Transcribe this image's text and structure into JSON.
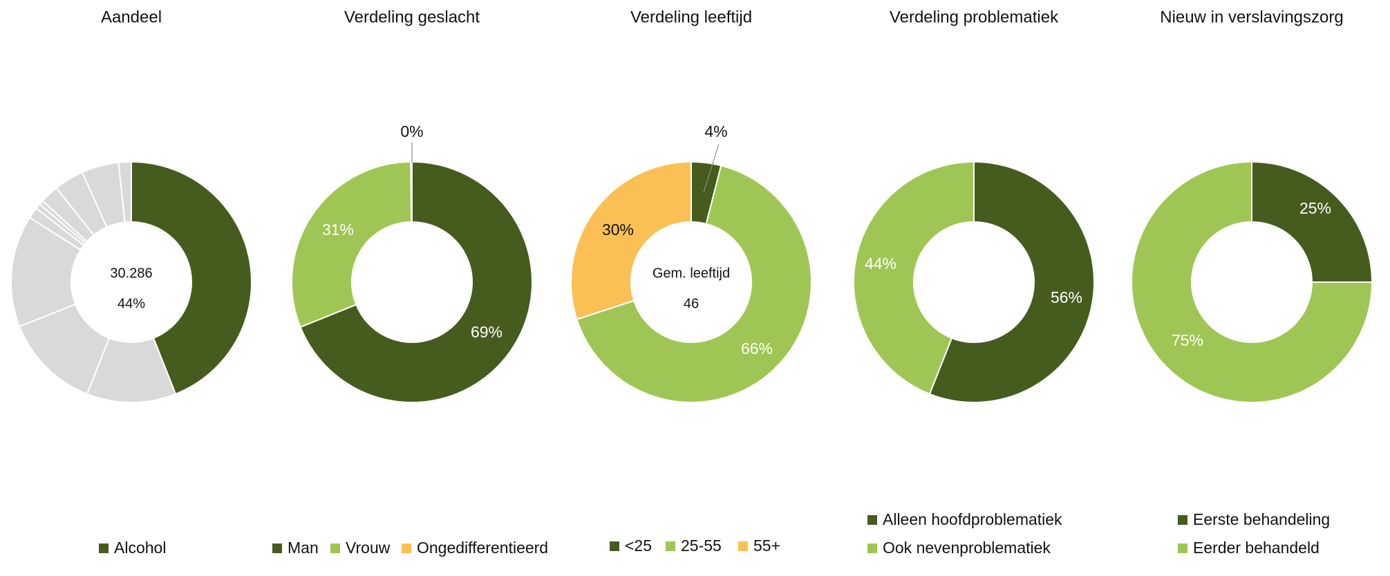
{
  "chart_data": [
    {
      "type": "donut",
      "title": "Aandeel",
      "center_text": [
        "30.286",
        "44%"
      ],
      "slices": [
        {
          "label": "Alcohol",
          "value": 44,
          "color": "#465B1E",
          "show_label": false
        },
        {
          "label": "",
          "value": 12,
          "color": "#D9D9D9",
          "show_label": false
        },
        {
          "label": "",
          "value": 13,
          "color": "#D9D9D9",
          "show_label": false
        },
        {
          "label": "",
          "value": 15,
          "color": "#D9D9D9",
          "show_label": false
        },
        {
          "label": "",
          "value": 1.5,
          "color": "#D9D9D9",
          "show_label": false
        },
        {
          "label": "",
          "value": 0.7,
          "color": "#D9D9D9",
          "show_label": false
        },
        {
          "label": "",
          "value": 0.6,
          "color": "#D9D9D9",
          "show_label": false
        },
        {
          "label": "",
          "value": 2.5,
          "color": "#D9D9D9",
          "show_label": false
        },
        {
          "label": "",
          "value": 4,
          "color": "#D9D9D9",
          "show_label": false
        },
        {
          "label": "",
          "value": 5,
          "color": "#D9D9D9",
          "show_label": false
        },
        {
          "label": "",
          "value": 1.7,
          "color": "#D9D9D9",
          "show_label": false
        }
      ],
      "legend": [
        {
          "label": "Alcohol",
          "color": "#465B1E"
        }
      ]
    },
    {
      "type": "donut",
      "title": "Verdeling geslacht",
      "center_text": [],
      "slices": [
        {
          "label": "Man",
          "value": 69,
          "display": "69%",
          "color": "#465B1E",
          "show_label": true,
          "label_color": "#ffffff"
        },
        {
          "label": "Vrouw",
          "value": 31,
          "display": "31%",
          "color": "#9FC654",
          "show_label": true,
          "label_color": "#ffffff"
        },
        {
          "label": "Ongedifferentieerd",
          "value": 0.15,
          "display": "0%",
          "color": "#FAC055",
          "show_label": true,
          "label_color": "#111111",
          "outside": true
        }
      ],
      "legend": [
        {
          "label": "Man",
          "color": "#465B1E"
        },
        {
          "label": "Vrouw",
          "color": "#9FC654"
        },
        {
          "label": "Ongedifferentieerd",
          "color": "#FAC055"
        }
      ]
    },
    {
      "type": "donut",
      "title": "Verdeling leeftijd",
      "center_text": [
        "Gem. leeftijd",
        "46"
      ],
      "slices": [
        {
          "label": "<25",
          "value": 4,
          "display": "4%",
          "color": "#465B1E",
          "show_label": true,
          "label_color": "#111111",
          "outside": true
        },
        {
          "label": "25-55",
          "value": 66,
          "display": "66%",
          "color": "#9FC654",
          "show_label": true,
          "label_color": "#ffffff"
        },
        {
          "label": "55+",
          "value": 30,
          "display": "30%",
          "color": "#FAC055",
          "show_label": true,
          "label_color": "#111111"
        }
      ],
      "legend": [
        {
          "label": "<25",
          "color": "#465B1E"
        },
        {
          "label": "25-55",
          "color": "#9FC654"
        },
        {
          "label": "55+",
          "color": "#FAC055"
        }
      ]
    },
    {
      "type": "donut",
      "title": "Verdeling problematiek",
      "center_text": [],
      "slices": [
        {
          "label": "Alleen hoofdproblematiek",
          "value": 56,
          "display": "56%",
          "color": "#465B1E",
          "show_label": true,
          "label_color": "#ffffff"
        },
        {
          "label": "Ook nevenproblematiek",
          "value": 44,
          "display": "44%",
          "color": "#9FC654",
          "show_label": true,
          "label_color": "#ffffff"
        }
      ],
      "legend": [
        {
          "label": "Alleen hoofdproblematiek",
          "color": "#465B1E"
        },
        {
          "label": "Ook nevenproblematiek",
          "color": "#9FC654"
        }
      ]
    },
    {
      "type": "donut",
      "title": "Nieuw in verslavingszorg",
      "center_text": [],
      "slices": [
        {
          "label": "Eerste behandeling",
          "value": 25,
          "display": "25%",
          "color": "#465B1E",
          "show_label": true,
          "label_color": "#ffffff"
        },
        {
          "label": "Eerder behandeld",
          "value": 75,
          "display": "75%",
          "color": "#9FC654",
          "show_label": true,
          "label_color": "#ffffff"
        }
      ],
      "legend": [
        {
          "label": "Eerste behandeling",
          "color": "#465B1E"
        },
        {
          "label": "Eerder behandeld",
          "color": "#9FC654"
        }
      ]
    }
  ]
}
